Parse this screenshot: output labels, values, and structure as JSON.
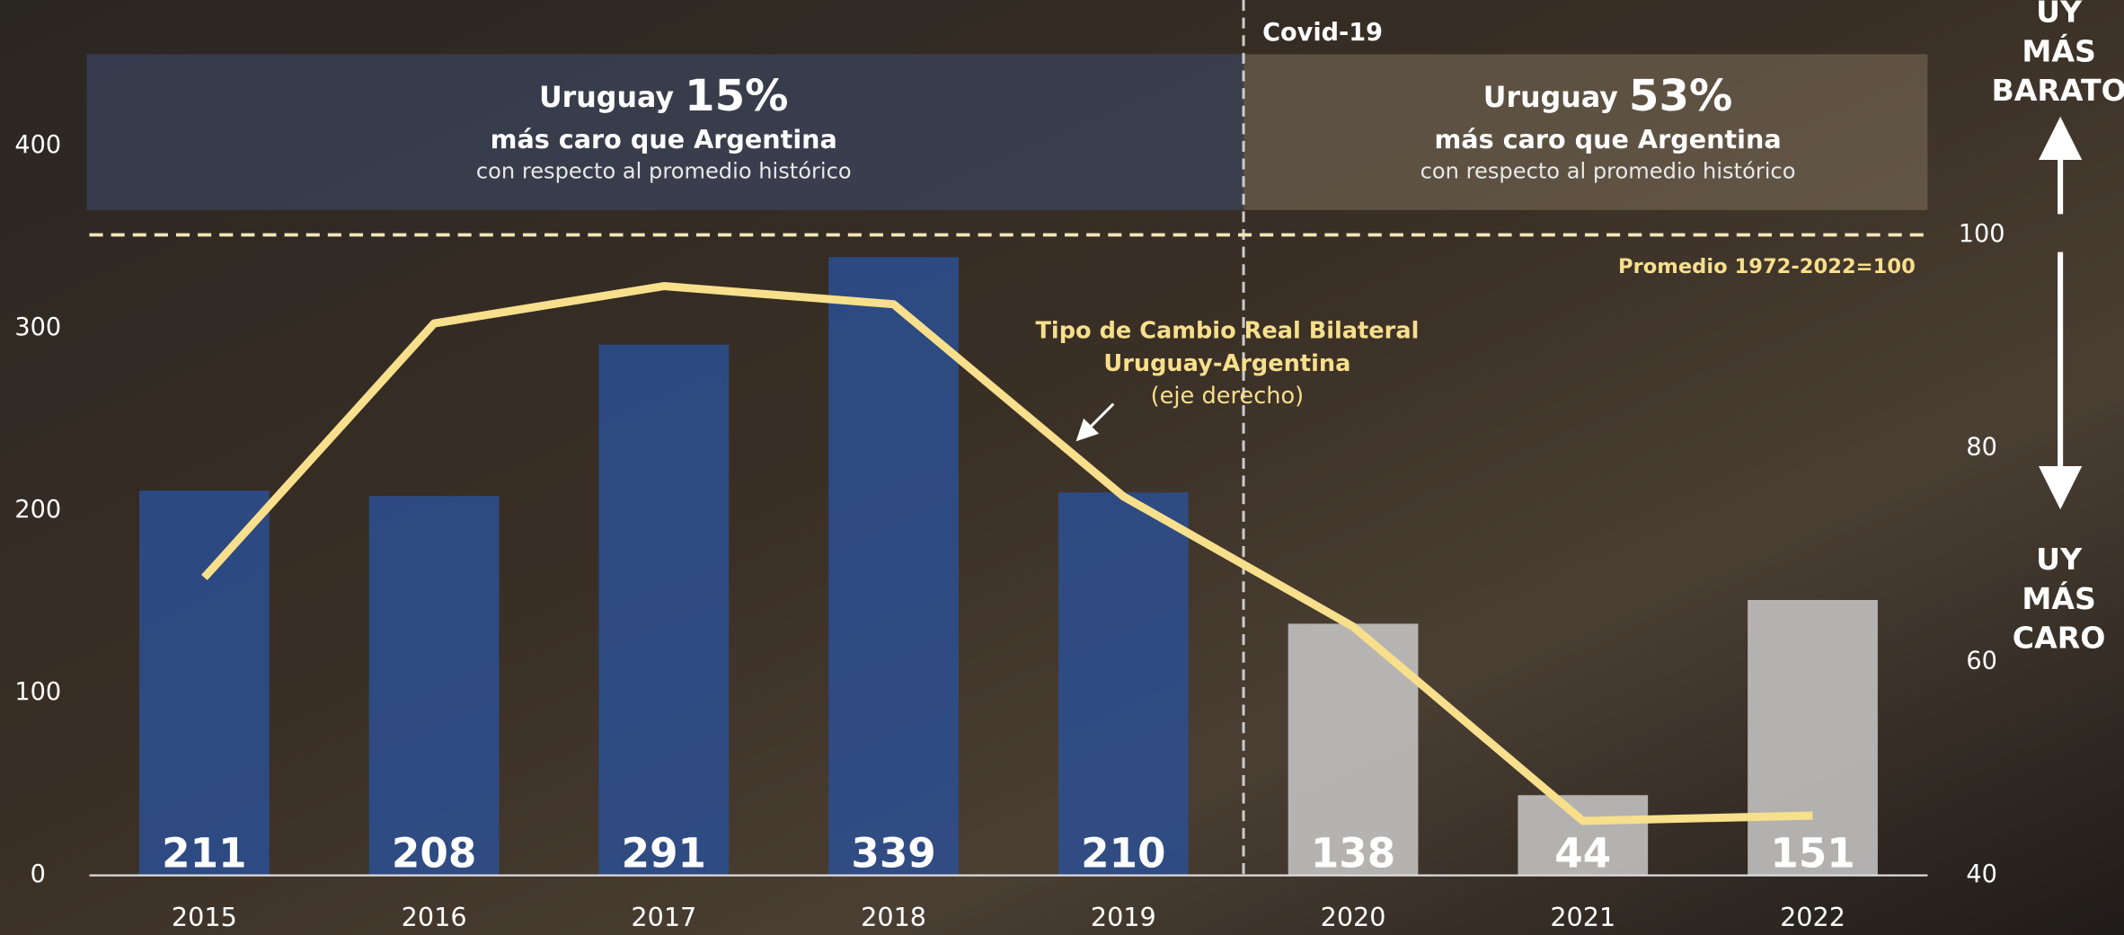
{
  "chart_data": {
    "type": "bar",
    "categories": [
      "2015",
      "2016",
      "2017",
      "2018",
      "2019",
      "2020",
      "2021",
      "2022"
    ],
    "series": [
      {
        "type": "bar",
        "values": [
          211,
          208,
          291,
          339,
          210,
          138,
          44,
          151
        ],
        "colors": [
          "#2c4f92",
          "#2c4f92",
          "#2c4f92",
          "#2c4f92",
          "#2c4f92",
          "#c9c9c9",
          "#c9c9c9",
          "#c9c9c9"
        ]
      },
      {
        "type": "line",
        "axis": "y2",
        "color": "#f7df8c",
        "values": [
          67.9,
          91.7,
          95.2,
          93.5,
          75.5,
          63.3,
          45.1,
          45.6
        ]
      }
    ],
    "ylim": [
      0,
      480
    ],
    "yticks": [
      0,
      100,
      200,
      300,
      400
    ],
    "y2lim": [
      40,
      122
    ],
    "y2ticks": [
      40,
      60,
      80,
      100
    ],
    "reference_line": {
      "value": 100,
      "axis": "y2",
      "label": "Promedio 1972-2022=100"
    },
    "divider_label": "Covid-19",
    "panels": [
      {
        "headline": "Uruguay",
        "figure": "15%",
        "line1": "más caro que Argentina",
        "line2": "con respecto al promedio histórico"
      },
      {
        "headline": "Uruguay",
        "figure": "53%",
        "line1": "más caro que Argentina",
        "line2": "con respecto al promedio histórico"
      }
    ],
    "line_note": [
      "Tipo de Cambio Real Bilateral",
      "Uruguay-Argentina",
      "(eje derecho)"
    ],
    "right_notes": {
      "top": [
        "UY",
        "MÁS",
        "BARATO"
      ],
      "bottom": [
        "UY",
        "MÁS",
        "CARO"
      ]
    }
  }
}
